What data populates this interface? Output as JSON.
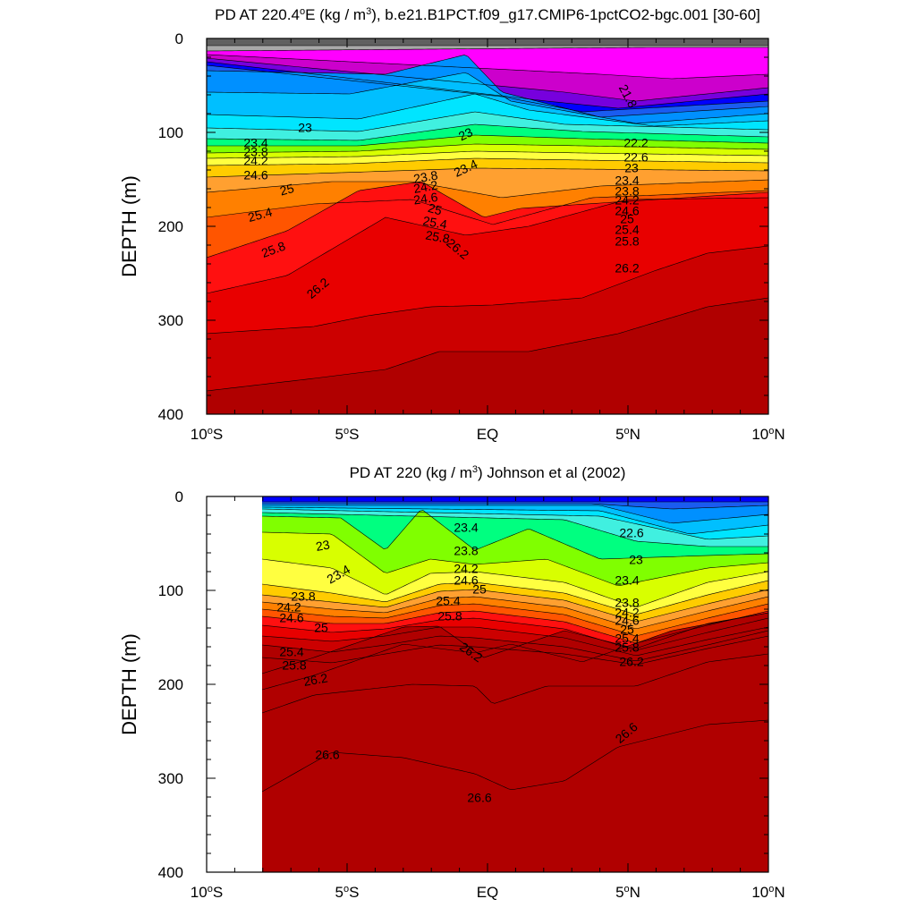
{
  "chart_data": [
    {
      "type": "contour",
      "title": "PD AT 220.4°E (kg / m³), b.e21.B1PCT.f09_g17.CMIP6-1pctCO2-bgc.001 [30-60]",
      "title_parts": {
        "pre": "PD AT 220.4",
        "deg": "o",
        "mid": "E (kg / m",
        "sup": "3",
        "post": "), b.e21.B1PCT.f09_g17.CMIP6-1pctCO2-bgc.001 [30-60]"
      },
      "ylabel": "DEPTH (m)",
      "xlabel": "",
      "x_ticks": [
        {
          "value": -10,
          "main": "10",
          "deg": "o",
          "hemi": "S"
        },
        {
          "value": -5,
          "main": "5",
          "deg": "o",
          "hemi": "S"
        },
        {
          "value": 0,
          "main": "EQ",
          "deg": "",
          "hemi": ""
        },
        {
          "value": 5,
          "main": "5",
          "deg": "o",
          "hemi": "N"
        },
        {
          "value": 10,
          "main": "10",
          "deg": "o",
          "hemi": "N"
        }
      ],
      "y_ticks": [
        "0",
        "100",
        "200",
        "300",
        "400"
      ],
      "xlim": [
        -10,
        10
      ],
      "ylim": [
        0,
        400
      ],
      "y_reversed": true,
      "data_xlim": [
        -10,
        10
      ],
      "contour_labels": [
        "21.8",
        "22.2",
        "22.6",
        "23",
        "23",
        "23",
        "23.4",
        "23.4",
        "23.4",
        "23.8",
        "23.8",
        "23.8",
        "24.2",
        "24.2",
        "24.2",
        "24.6",
        "24.6",
        "24.6",
        "25",
        "25",
        "25",
        "25.4",
        "25.4",
        "25.4",
        "25.8",
        "25.8",
        "25.8",
        "26.2",
        "26.2",
        "26.2"
      ]
    },
    {
      "type": "contour",
      "title": "PD AT 220 (kg / m³) Johnson et al (2002)",
      "title_parts": {
        "pre": "PD AT 220 (kg / m",
        "deg": "",
        "mid": "",
        "sup": "3",
        "post": ") Johnson et al (2002)"
      },
      "ylabel": "DEPTH (m)",
      "xlabel": "",
      "x_ticks": [
        {
          "value": -10,
          "main": "10",
          "deg": "o",
          "hemi": "S"
        },
        {
          "value": -5,
          "main": "5",
          "deg": "o",
          "hemi": "S"
        },
        {
          "value": 0,
          "main": "EQ",
          "deg": "",
          "hemi": ""
        },
        {
          "value": 5,
          "main": "5",
          "deg": "o",
          "hemi": "N"
        },
        {
          "value": 10,
          "main": "10",
          "deg": "o",
          "hemi": "N"
        }
      ],
      "y_ticks": [
        "0",
        "100",
        "200",
        "300",
        "400"
      ],
      "xlim": [
        -10,
        10
      ],
      "ylim": [
        0,
        400
      ],
      "y_reversed": true,
      "data_xlim": [
        -8,
        10
      ],
      "contour_labels": [
        "22.6",
        "23",
        "23",
        "23",
        "23.4",
        "23.4",
        "23.4",
        "23.8",
        "23.8",
        "23.8",
        "24.2",
        "24.2",
        "24.2",
        "24.6",
        "24.6",
        "24.6",
        "25",
        "25",
        "25",
        "25.4",
        "25.4",
        "25.4",
        "25.8",
        "25.8",
        "25.8",
        "26.2",
        "26.2",
        "26.2",
        "26.6",
        "26.6",
        "26.6"
      ]
    }
  ],
  "colors": {
    "bands": [
      "#606060",
      "#a8a8a8",
      "#ff00ff",
      "#cc00cc",
      "#7700dd",
      "#0000ff",
      "#1a5cf0",
      "#0090ff",
      "#00bfff",
      "#00e5ff",
      "#40f0e0",
      "#00ff80",
      "#80ff00",
      "#d8ff00",
      "#ffff40",
      "#ffcc00",
      "#ffa030",
      "#ff8000",
      "#ff5500",
      "#ff1010",
      "#e80000",
      "#cc0000",
      "#b00000"
    ]
  }
}
